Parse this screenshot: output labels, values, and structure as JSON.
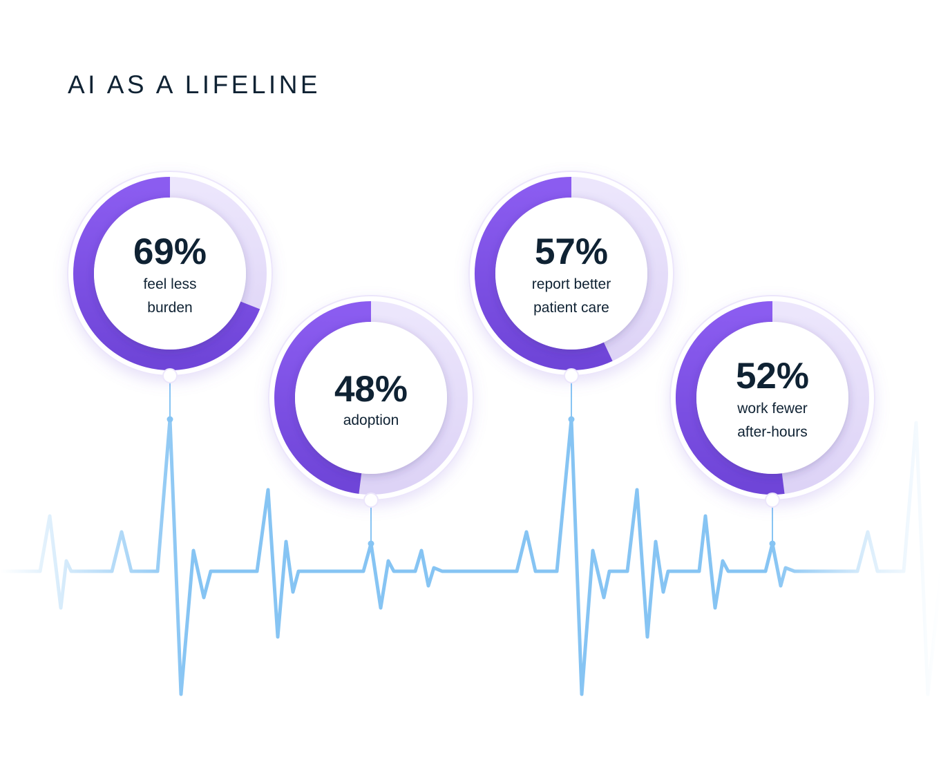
{
  "title": "AI AS A LIFELINE",
  "colors": {
    "accent": "#7d4fe6",
    "track": "#e6defa",
    "heartbeat": "#86c4f3",
    "text": "#0f2233"
  },
  "chart_data": {
    "type": "donut",
    "title": "AI AS A LIFELINE",
    "unit": "%",
    "items": [
      {
        "value": 69,
        "value_label": "69%",
        "label_lines": [
          "feel less",
          "burden"
        ]
      },
      {
        "value": 48,
        "value_label": "48%",
        "label_lines": [
          "adoption"
        ]
      },
      {
        "value": 57,
        "value_label": "57%",
        "label_lines": [
          "report better",
          "patient care"
        ]
      },
      {
        "value": 52,
        "value_label": "52%",
        "label_lines": [
          "work fewer",
          "after-hours"
        ]
      }
    ]
  }
}
